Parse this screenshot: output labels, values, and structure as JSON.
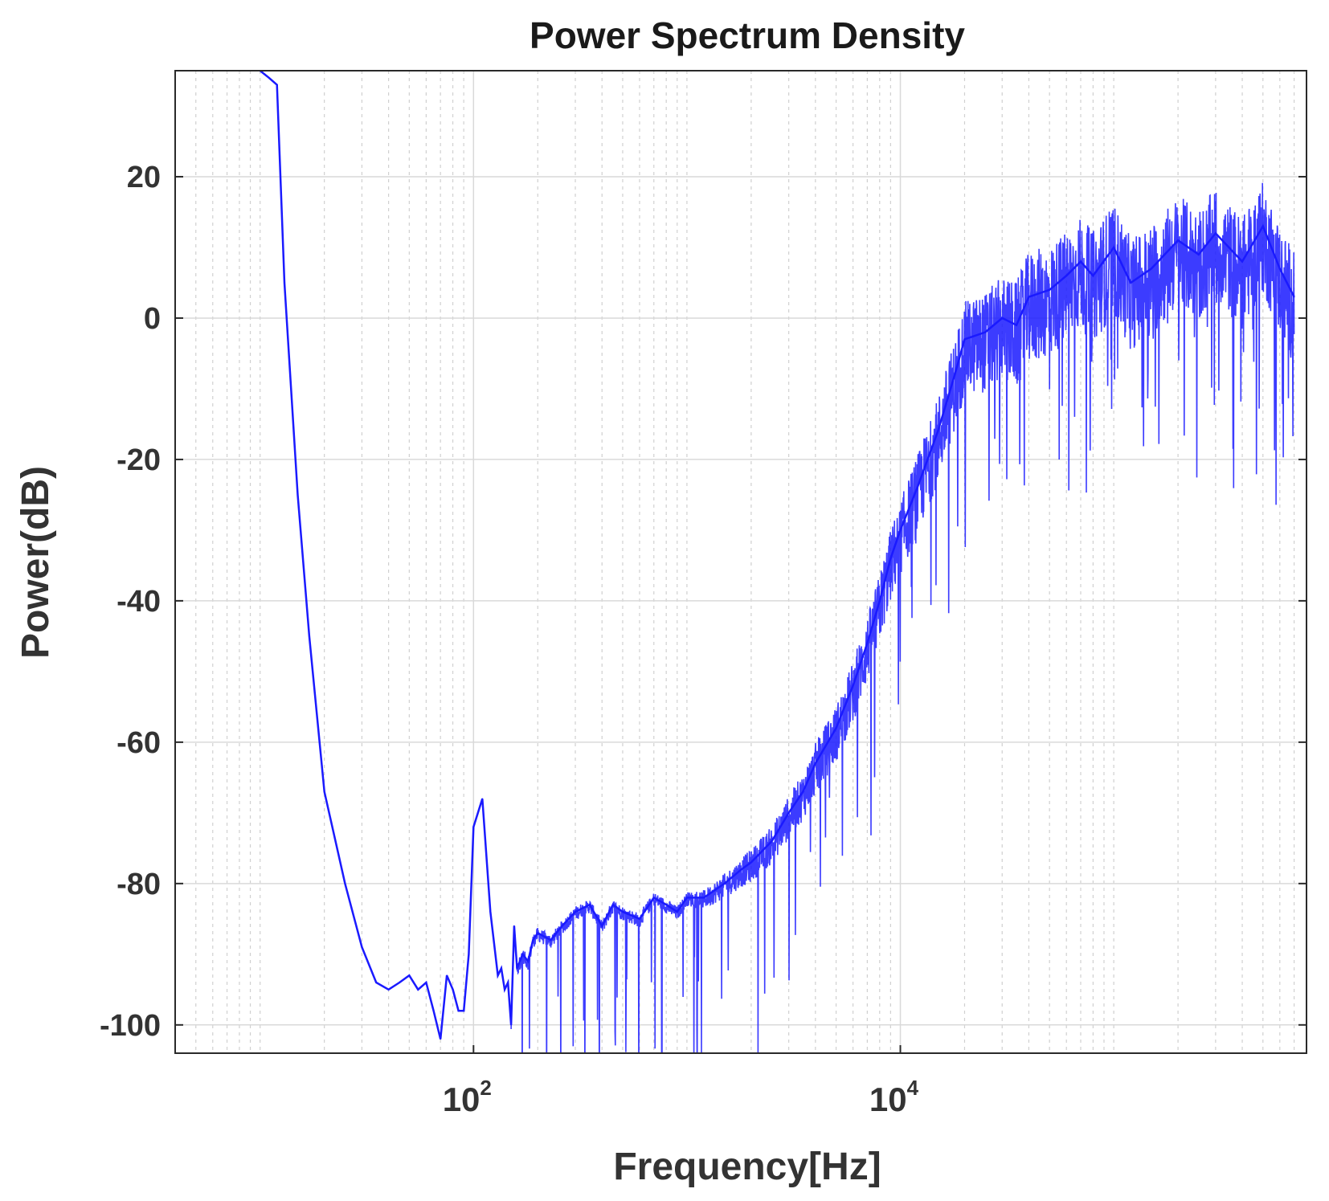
{
  "chart_data": {
    "type": "line",
    "title": "Power Spectrum Density",
    "xlabel": "Frequency[Hz]",
    "ylabel": "Power(dB)",
    "x_scale": "log",
    "xlim": [
      4,
      800000
    ],
    "ylim": [
      -104,
      35
    ],
    "grid": true,
    "legend": "none",
    "line_color": "#1a1aff",
    "y_ticks": [
      20,
      0,
      -20,
      -40,
      -60,
      -80,
      -100
    ],
    "y_tick_labels": [
      "20",
      "0",
      "-20",
      "-40",
      "-60",
      "-80",
      "-100"
    ],
    "x_ticks": [
      {
        "value": 100,
        "base": "10",
        "exp": "2"
      },
      {
        "value": 10000,
        "base": "10",
        "exp": "4"
      }
    ],
    "series": [
      {
        "x": [
          10,
          11,
          12,
          13,
          15,
          17,
          20,
          25,
          30,
          35,
          40,
          45,
          50,
          55,
          60,
          65,
          70,
          75,
          80,
          85,
          90,
          95,
          100,
          110,
          120,
          130,
          135,
          140,
          145,
          150,
          155,
          160,
          170,
          180,
          190,
          200,
          230,
          260,
          300,
          350,
          400,
          450,
          500,
          600,
          700,
          800,
          900,
          1000,
          1200,
          1500,
          1800,
          2000,
          2500,
          3000,
          3500,
          4000,
          5000,
          6000,
          7000,
          8000,
          9000,
          10000,
          12000,
          15000,
          18000,
          20000,
          25000,
          30000,
          35000,
          40000,
          50000,
          60000,
          70000,
          80000,
          100000,
          120000,
          150000,
          200000,
          250000,
          300000,
          400000,
          500000,
          600000,
          700000
        ],
        "y": [
          35,
          34,
          33,
          5,
          -25,
          -45,
          -67,
          -80,
          -89,
          -94,
          -95,
          -94,
          -93,
          -95,
          -94,
          -98,
          -102,
          -93,
          -95,
          -98,
          -98,
          -90,
          -72,
          -68,
          -84,
          -93,
          -92,
          -95,
          -94,
          -100,
          -86,
          -92,
          -90,
          -91,
          -88,
          -87,
          -88,
          -86,
          -84,
          -83,
          -86,
          -83,
          -84,
          -85,
          -82,
          -83,
          -84,
          -82,
          -82,
          -80,
          -78,
          -77,
          -74,
          -70,
          -67,
          -63,
          -58,
          -52,
          -46,
          -40,
          -34,
          -30,
          -24,
          -16,
          -8,
          -3,
          -2,
          0,
          -1,
          3,
          4,
          6,
          8,
          6,
          10,
          5,
          7,
          11,
          9,
          12,
          8,
          13,
          7,
          3
        ]
      }
    ]
  }
}
